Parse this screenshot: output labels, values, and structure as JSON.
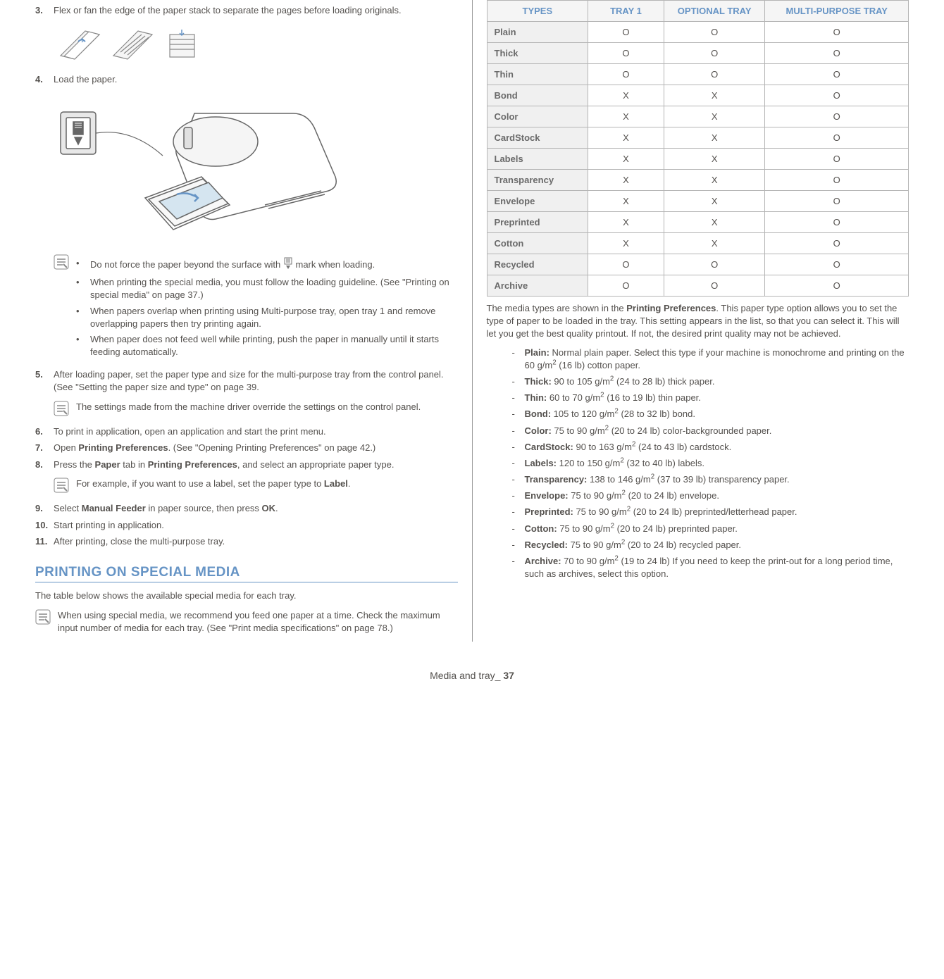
{
  "left": {
    "steps": [
      {
        "n": "3.",
        "text": "Flex or fan the edge of the paper stack to separate the pages before loading originals."
      },
      {
        "n": "4.",
        "text": "Load the paper."
      }
    ],
    "note1_bullets": [
      {
        "pre": "Do not force the paper beyond the surface with ",
        "post": " mark when loading."
      },
      {
        "text": "When printing the special media, you must follow the loading guideline. (See \"Printing on special media\" on page 37.)"
      },
      {
        "text": "When papers overlap when printing using Multi-purpose tray, open tray 1 and remove overlapping papers then try printing again."
      },
      {
        "text": "When paper does not feed well while printing, push the paper in manually until it starts feeding automatically."
      }
    ],
    "step5": {
      "n": "5.",
      "text": "After loading paper, set the paper type and size for the multi-purpose tray from the control panel. (See \"Setting the paper size and type\" on page 39."
    },
    "note2": "The settings made from the machine driver override the settings on the control panel.",
    "step6": {
      "n": "6.",
      "text": "To print in application, open an application and start the print menu."
    },
    "step7": {
      "n": "7.",
      "pre": "Open ",
      "b1": "Printing Preferences",
      "post": ". (See \"Opening Printing Preferences\" on page 42.)"
    },
    "step8": {
      "n": "8.",
      "pre": "Press the ",
      "b1": "Paper",
      "mid": " tab in ",
      "b2": "Printing Preferences",
      "post": ", and select an appropriate paper type."
    },
    "note3": {
      "pre": "For example, if you want to use a label, set the paper type to ",
      "b1": "Label",
      "post": "."
    },
    "step9": {
      "n": "9.",
      "pre": "Select ",
      "b1": "Manual Feeder",
      "mid": " in paper source, then press ",
      "b2": "OK",
      "post": "."
    },
    "step10": {
      "n": "10.",
      "text": "Start printing in application."
    },
    "step11": {
      "n": "11.",
      "text": "After printing, close the multi-purpose tray."
    },
    "section_title": "PRINTING ON SPECIAL MEDIA",
    "section_desc": "The table below shows the available special media for each tray.",
    "note4": "When using special media, we recommend you feed one paper at a time. Check the maximum input number of media for each tray. (See \"Print media specifications\" on page 78.)"
  },
  "right": {
    "table": {
      "headers": [
        "TYPES",
        "TRAY 1",
        "OPTIONAL TRAY",
        "MULTI-PURPOSE TRAY"
      ],
      "rows": [
        [
          "Plain",
          "O",
          "O",
          "O"
        ],
        [
          "Thick",
          "O",
          "O",
          "O"
        ],
        [
          "Thin",
          "O",
          "O",
          "O"
        ],
        [
          "Bond",
          "X",
          "X",
          "O"
        ],
        [
          "Color",
          "X",
          "X",
          "O"
        ],
        [
          "CardStock",
          "X",
          "X",
          "O"
        ],
        [
          "Labels",
          "X",
          "X",
          "O"
        ],
        [
          "Transparency",
          "X",
          "X",
          "O"
        ],
        [
          "Envelope",
          "X",
          "X",
          "O"
        ],
        [
          "Preprinted",
          "X",
          "X",
          "O"
        ],
        [
          "Cotton",
          "X",
          "X",
          "O"
        ],
        [
          "Recycled",
          "O",
          "O",
          "O"
        ],
        [
          "Archive",
          "O",
          "O",
          "O"
        ]
      ]
    },
    "desc": "The media types are shown in the <b>Printing Preferences</b>. This paper type option allows you to set the type of paper to be loaded in the tray. This setting appears in the list, so that you can select it. This will let you get the best quality printout. If not, the desired print quality may not be achieved.",
    "defs": [
      {
        "term": "Plain:",
        "body": " Normal plain paper. Select this type if your machine is monochrome and printing on the 60 g/m<sup>2</sup> (16 lb) cotton paper."
      },
      {
        "term": "Thick:",
        "body": " 90 to 105 g/m<sup>2</sup> (24 to 28 lb) thick paper."
      },
      {
        "term": "Thin:",
        "body": " 60 to 70 g/m<sup>2</sup> (16 to 19 lb) thin paper."
      },
      {
        "term": "Bond:",
        "body": " 105 to 120 g/m<sup>2</sup> (28 to 32 lb) bond."
      },
      {
        "term": "Color:",
        "body": " 75 to 90 g/m<sup>2</sup> (20 to 24 lb) color-backgrounded paper."
      },
      {
        "term": "CardStock:",
        "body": " 90 to 163 g/m<sup>2</sup> (24 to 43 lb) cardstock."
      },
      {
        "term": "Labels:",
        "body": " 120 to 150 g/m<sup>2</sup> (32 to 40 lb) labels."
      },
      {
        "term": "Transparency:",
        "body": " 138 to 146 g/m<sup>2</sup> (37 to 39 lb) transparency paper."
      },
      {
        "term": "Envelope:",
        "body": " 75 to 90 g/m<sup>2</sup> (20 to 24 lb) envelope."
      },
      {
        "term": "Preprinted:",
        "body": " 75 to 90 g/m<sup>2</sup> (20 to 24 lb) preprinted/letterhead paper."
      },
      {
        "term": "Cotton:",
        "body": " 75 to 90 g/m<sup>2</sup> (20 to 24 lb) preprinted paper."
      },
      {
        "term": "Recycled:",
        "body": " 75 to 90 g/m<sup>2</sup> (20 to 24 lb) recycled paper."
      },
      {
        "term": "Archive:",
        "body": " 70 to 90 g/m<sup>2</sup> (19 to 24 lb) If you need to keep the print-out for a long period time, such as archives, select this option."
      }
    ]
  },
  "footer": {
    "label": "Media and tray",
    "sep": "_ ",
    "page": "37"
  },
  "colors": {
    "accent": "#6694c5",
    "text": "#54514e",
    "border": "#b5b5b5",
    "th_bg": "#f5f5f5",
    "row_bg": "#f0f0f0"
  }
}
